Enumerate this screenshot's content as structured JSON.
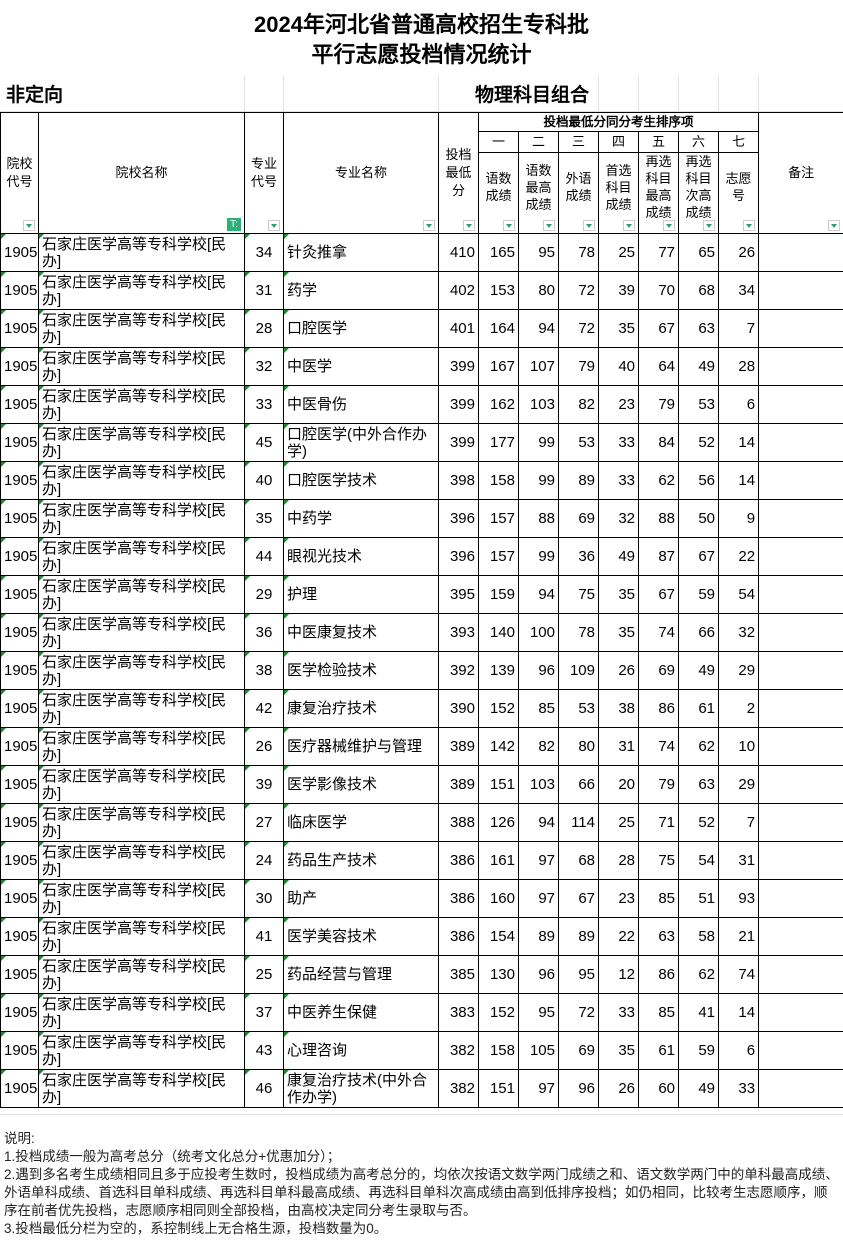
{
  "title": {
    "line1": "2024年河北省普通高校招生专科批",
    "line2": "平行志愿投档情况统计"
  },
  "section": {
    "left": "非定向",
    "right": "物理科目组合"
  },
  "headers": {
    "school_code": "院校代号",
    "school_name": "院校名称",
    "major_code": "专业代号",
    "major_name": "专业名称",
    "min_score": "投档最低分",
    "tiebreak_group": "投档最低分同分考生排序项",
    "orders": [
      "一",
      "二",
      "三",
      "四",
      "五",
      "六",
      "七"
    ],
    "tiebreak": [
      "语数成绩",
      "语数最高成绩",
      "外语成绩",
      "首选科目成绩",
      "再选科目最高成绩",
      "再选科目次高成绩",
      "志愿号"
    ],
    "remarks": "备注"
  },
  "rows": [
    [
      "1905",
      "石家庄医学高等专科学校[民办]",
      "34",
      "针灸推拿",
      "410",
      "165",
      "95",
      "78",
      "25",
      "77",
      "65",
      "26"
    ],
    [
      "1905",
      "石家庄医学高等专科学校[民办]",
      "31",
      "药学",
      "402",
      "153",
      "80",
      "72",
      "39",
      "70",
      "68",
      "34"
    ],
    [
      "1905",
      "石家庄医学高等专科学校[民办]",
      "28",
      "口腔医学",
      "401",
      "164",
      "94",
      "72",
      "35",
      "67",
      "63",
      "7"
    ],
    [
      "1905",
      "石家庄医学高等专科学校[民办]",
      "32",
      "中医学",
      "399",
      "167",
      "107",
      "79",
      "40",
      "64",
      "49",
      "28"
    ],
    [
      "1905",
      "石家庄医学高等专科学校[民办]",
      "33",
      "中医骨伤",
      "399",
      "162",
      "103",
      "82",
      "23",
      "79",
      "53",
      "6"
    ],
    [
      "1905",
      "石家庄医学高等专科学校[民办]",
      "45",
      "口腔医学(中外合作办学)",
      "399",
      "177",
      "99",
      "53",
      "33",
      "84",
      "52",
      "14"
    ],
    [
      "1905",
      "石家庄医学高等专科学校[民办]",
      "40",
      "口腔医学技术",
      "398",
      "158",
      "99",
      "89",
      "33",
      "62",
      "56",
      "14"
    ],
    [
      "1905",
      "石家庄医学高等专科学校[民办]",
      "35",
      "中药学",
      "396",
      "157",
      "88",
      "69",
      "32",
      "88",
      "50",
      "9"
    ],
    [
      "1905",
      "石家庄医学高等专科学校[民办]",
      "44",
      "眼视光技术",
      "396",
      "157",
      "99",
      "36",
      "49",
      "87",
      "67",
      "22"
    ],
    [
      "1905",
      "石家庄医学高等专科学校[民办]",
      "29",
      "护理",
      "395",
      "159",
      "94",
      "75",
      "35",
      "67",
      "59",
      "54"
    ],
    [
      "1905",
      "石家庄医学高等专科学校[民办]",
      "36",
      "中医康复技术",
      "393",
      "140",
      "100",
      "78",
      "35",
      "74",
      "66",
      "32"
    ],
    [
      "1905",
      "石家庄医学高等专科学校[民办]",
      "38",
      "医学检验技术",
      "392",
      "139",
      "96",
      "109",
      "26",
      "69",
      "49",
      "29"
    ],
    [
      "1905",
      "石家庄医学高等专科学校[民办]",
      "42",
      "康复治疗技术",
      "390",
      "152",
      "85",
      "53",
      "38",
      "86",
      "61",
      "2"
    ],
    [
      "1905",
      "石家庄医学高等专科学校[民办]",
      "26",
      "医疗器械维护与管理",
      "389",
      "142",
      "82",
      "80",
      "31",
      "74",
      "62",
      "10"
    ],
    [
      "1905",
      "石家庄医学高等专科学校[民办]",
      "39",
      "医学影像技术",
      "389",
      "151",
      "103",
      "66",
      "20",
      "79",
      "63",
      "29"
    ],
    [
      "1905",
      "石家庄医学高等专科学校[民办]",
      "27",
      "临床医学",
      "388",
      "126",
      "94",
      "114",
      "25",
      "71",
      "52",
      "7"
    ],
    [
      "1905",
      "石家庄医学高等专科学校[民办]",
      "24",
      "药品生产技术",
      "386",
      "161",
      "97",
      "68",
      "28",
      "75",
      "54",
      "31"
    ],
    [
      "1905",
      "石家庄医学高等专科学校[民办]",
      "30",
      "助产",
      "386",
      "160",
      "97",
      "67",
      "23",
      "85",
      "51",
      "93"
    ],
    [
      "1905",
      "石家庄医学高等专科学校[民办]",
      "41",
      "医学美容技术",
      "386",
      "154",
      "89",
      "89",
      "22",
      "63",
      "58",
      "21"
    ],
    [
      "1905",
      "石家庄医学高等专科学校[民办]",
      "25",
      "药品经营与管理",
      "385",
      "130",
      "96",
      "95",
      "12",
      "86",
      "62",
      "74"
    ],
    [
      "1905",
      "石家庄医学高等专科学校[民办]",
      "37",
      "中医养生保健",
      "383",
      "152",
      "95",
      "72",
      "33",
      "85",
      "41",
      "14"
    ],
    [
      "1905",
      "石家庄医学高等专科学校[民办]",
      "43",
      "心理咨询",
      "382",
      "158",
      "105",
      "69",
      "35",
      "61",
      "59",
      "6"
    ],
    [
      "1905",
      "石家庄医学高等专科学校[民办]",
      "46",
      "康复治疗技术(中外合作办学)",
      "382",
      "151",
      "97",
      "96",
      "26",
      "60",
      "49",
      "33"
    ]
  ],
  "notes": {
    "heading": "说明:",
    "items": [
      "1.投档成绩一般为高考总分（统考文化总分+优惠加分）；",
      "2.遇到多名考生成绩相同且多于应投考生数时，投档成绩为高考总分的，均依次按语文数学两门成绩之和、语文数学两门中的单科最高成绩、外语单科成绩、首选科目单科成绩、再选科目单科最高成绩、再选科目单科次高成绩由高到低排序投档；如仍相同，比较考生志愿顺序，顺序在前者优先投档，志愿顺序相同则全部投档，由高校决定同分考生录取与否。",
      "3.投档最低分栏为空的，系控制线上无合格生源，投档数量为0。"
    ]
  },
  "colors": {
    "filter_green": "#2bb07a",
    "border": "#000000"
  }
}
